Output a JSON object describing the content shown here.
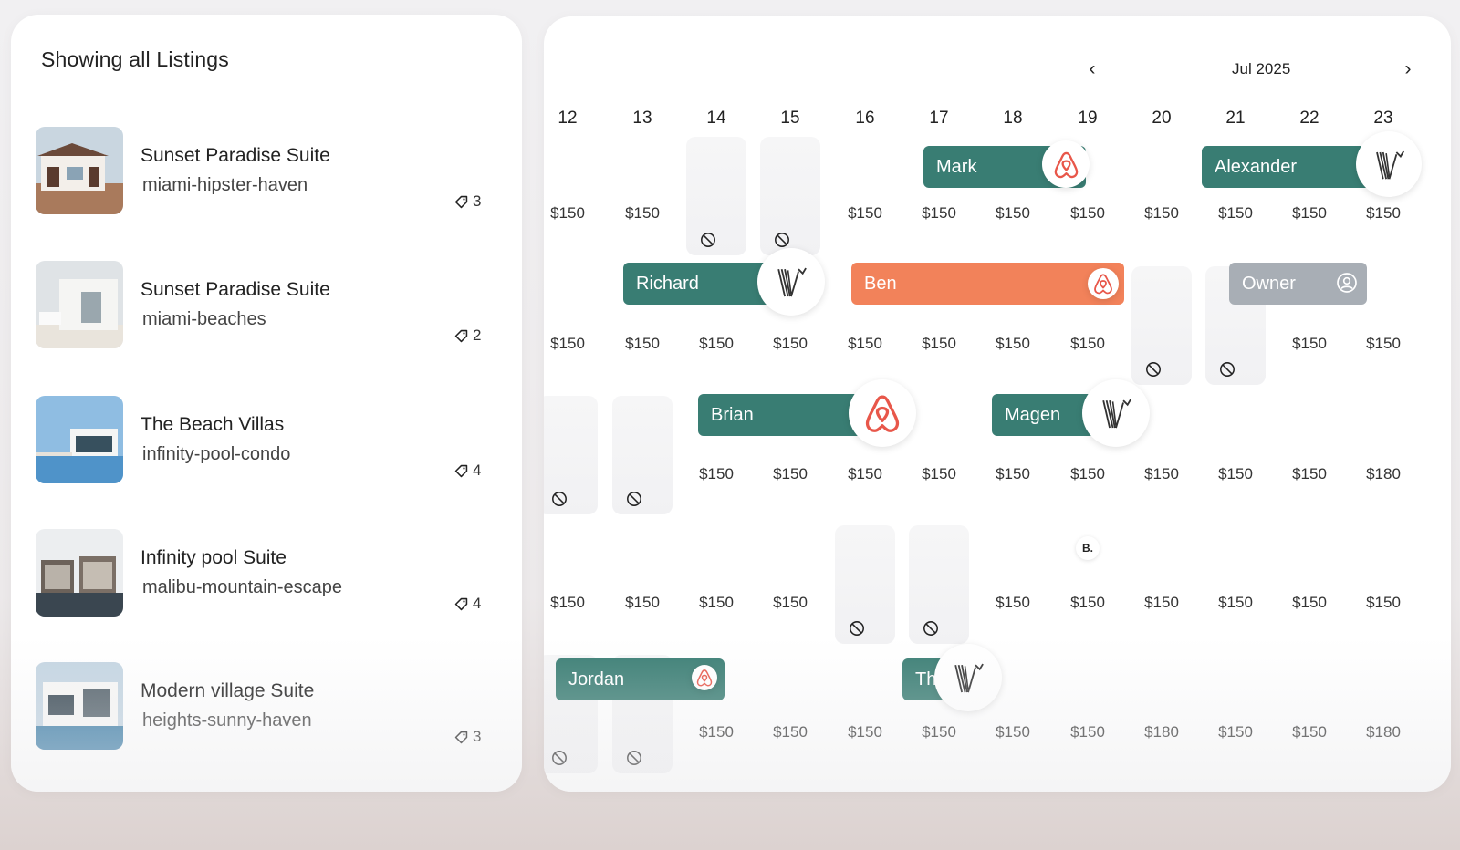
{
  "sidebar": {
    "title": "Showing all Listings",
    "listings": [
      {
        "name": "Sunset Paradise Suite",
        "slug": "miami-hipster-haven",
        "tags": "3"
      },
      {
        "name": "Sunset Paradise Suite",
        "slug": "miami-beaches",
        "tags": "2"
      },
      {
        "name": "The Beach Villas",
        "slug": "infinity-pool-condo",
        "tags": "4"
      },
      {
        "name": "Infinity pool Suite",
        "slug": "malibu-mountain-escape",
        "tags": "4"
      },
      {
        "name": "Modern village Suite",
        "slug": "heights-sunny-haven",
        "tags": "3"
      }
    ]
  },
  "calendar": {
    "month": "Jul 2025",
    "prev_icon": "chevron-left-icon",
    "next_icon": "chevron-right-icon",
    "days": [
      "12",
      "13",
      "14",
      "15",
      "16",
      "17",
      "18",
      "19",
      "20",
      "21",
      "22",
      "23"
    ],
    "rows": [
      [
        "$150",
        "$150",
        "",
        "",
        "$150",
        "$150",
        "$150",
        "$150",
        "$150",
        "$150",
        "$150",
        "$150"
      ],
      [
        "$150",
        "$150",
        "$150",
        "$150",
        "$150",
        "$150",
        "$150",
        "$150",
        "",
        "",
        "$150",
        "$150"
      ],
      [
        "",
        "",
        "$150",
        "$150",
        "$150",
        "$150",
        "$150",
        "$150",
        "$150",
        "$150",
        "$150",
        "$180"
      ],
      [
        "$150",
        "$150",
        "$150",
        "$150",
        "",
        "",
        "$150",
        "$150",
        "$150",
        "$150",
        "$150",
        "$150"
      ],
      [
        "",
        "",
        "$150",
        "$150",
        "$150",
        "$150",
        "$150",
        "$150",
        "$180",
        "$150",
        "$150",
        "$180"
      ]
    ],
    "bookings": [
      {
        "guest": "Mark",
        "source": "airbnb"
      },
      {
        "guest": "Alexander",
        "source": "vrbo"
      },
      {
        "guest": "Richard",
        "source": "vrbo"
      },
      {
        "guest": "Ben",
        "source": "airbnb"
      },
      {
        "guest": "Owner",
        "source": "owner"
      },
      {
        "guest": "Brian",
        "source": "airbnb"
      },
      {
        "guest": "Magen",
        "source": "vrbo"
      },
      {
        "guest": "Jordan",
        "source": "airbnb"
      },
      {
        "guest": "Th",
        "source": "vrbo"
      }
    ],
    "b_badge": "B.",
    "colors": {
      "teal": "#397d73",
      "orange": "#f2825a",
      "grey": "#a8aeb5",
      "airbnb": "#e8574a"
    }
  }
}
